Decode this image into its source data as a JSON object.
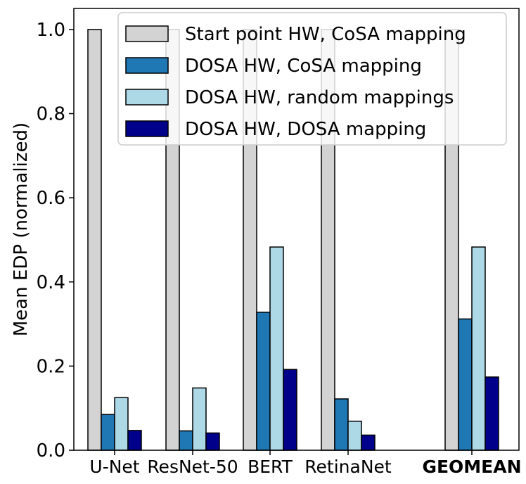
{
  "chart_data": {
    "type": "bar",
    "title": "",
    "xlabel": "",
    "ylabel": "Mean EDP (normalized)",
    "ylim": [
      0,
      1.05
    ],
    "yticks": [
      "0.0",
      "0.2",
      "0.4",
      "0.6",
      "0.8",
      "1.0"
    ],
    "ytick_values": [
      0,
      0.2,
      0.4,
      0.6,
      0.8,
      1.0
    ],
    "categories": [
      "U-Net",
      "ResNet-50",
      "BERT",
      "RetinaNet",
      "GEOMEAN"
    ],
    "bold_categories": [
      "GEOMEAN"
    ],
    "grid": false,
    "legend_position": "top-right",
    "series": [
      {
        "name": "Start point HW, CoSA mapping",
        "color": "#d3d3d3",
        "values": [
          1.0,
          1.0,
          1.0,
          1.0,
          1.0
        ]
      },
      {
        "name": "DOSA HW, CoSA mapping",
        "color": "#1f77b4",
        "values": [
          0.085,
          0.046,
          0.328,
          0.122,
          0.312
        ]
      },
      {
        "name": "DOSA HW, random mappings",
        "color": "#add8e6",
        "values": [
          0.125,
          0.148,
          0.483,
          0.069,
          0.483
        ]
      },
      {
        "name": "DOSA HW, DOSA mapping",
        "color": "#00008b",
        "values": [
          0.047,
          0.041,
          0.192,
          0.036,
          0.174
        ]
      }
    ]
  }
}
